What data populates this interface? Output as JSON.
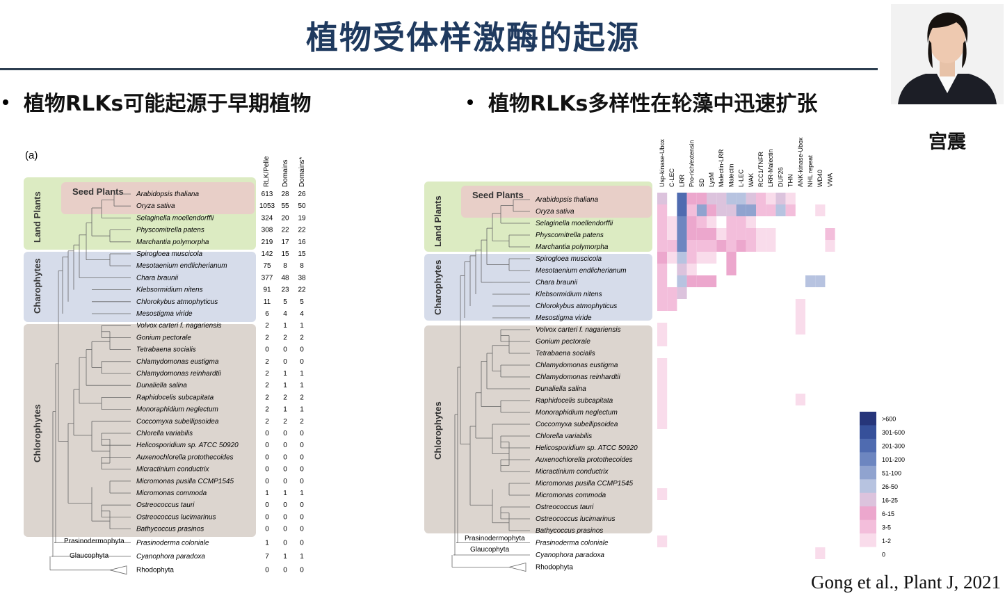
{
  "slide": {
    "title": "植物受体样激酶的起源",
    "presenter": "宫震",
    "bullet_left": "植物RLKs可能起源于早期植物",
    "bullet_right": "植物RLKs多样性在轮藻中迅速扩张",
    "citation": "Gong et al., Plant J, 2021"
  },
  "figure_left": {
    "panel_label": "(a)",
    "column_headers": [
      "RLK/Pelle",
      "Domains",
      "Domains*"
    ],
    "group_labels": [
      "Seed Plants",
      "Land Plants",
      "Charophytes",
      "Chlorophytes",
      "Prasinodermophyta",
      "Glaucophyta"
    ],
    "group_colors": {
      "seed": "#e8cfc8",
      "land": "#dcebc2",
      "charo": "#d6dcea",
      "chloro": "#dcd5cf"
    },
    "species": [
      {
        "name": "Arabidopsis thaliana",
        "rlk": "613",
        "d": "28",
        "ds": "26"
      },
      {
        "name": "Oryza sativa",
        "rlk": "1053",
        "d": "55",
        "ds": "50"
      },
      {
        "name": "Selaginella moellendorffii",
        "rlk": "324",
        "d": "20",
        "ds": "19"
      },
      {
        "name": "Physcomitrella patens",
        "rlk": "308",
        "d": "22",
        "ds": "22"
      },
      {
        "name": "Marchantia polymorpha",
        "rlk": "219",
        "d": "17",
        "ds": "16"
      },
      {
        "name": "Spirogloea muscicola",
        "rlk": "142",
        "d": "15",
        "ds": "15"
      },
      {
        "name": "Mesotaenium endlicherianum",
        "rlk": "75",
        "d": "8",
        "ds": "8"
      },
      {
        "name": "Chara braunii",
        "rlk": "377",
        "d": "48",
        "ds": "38"
      },
      {
        "name": "Klebsormidium nitens",
        "rlk": "91",
        "d": "23",
        "ds": "22"
      },
      {
        "name": "Chlorokybus atmophyticus",
        "rlk": "11",
        "d": "5",
        "ds": "5"
      },
      {
        "name": "Mesostigma viride",
        "rlk": "6",
        "d": "4",
        "ds": "4"
      },
      {
        "name": "Volvox carteri f. nagariensis",
        "rlk": "2",
        "d": "1",
        "ds": "1"
      },
      {
        "name": "Gonium pectorale",
        "rlk": "2",
        "d": "2",
        "ds": "2"
      },
      {
        "name": "Tetrabaena socialis",
        "rlk": "0",
        "d": "0",
        "ds": "0"
      },
      {
        "name": "Chlamydomonas eustigma",
        "rlk": "2",
        "d": "0",
        "ds": "0"
      },
      {
        "name": "Chlamydomonas reinhardtii",
        "rlk": "2",
        "d": "1",
        "ds": "1"
      },
      {
        "name": "Dunaliella salina",
        "rlk": "2",
        "d": "1",
        "ds": "1"
      },
      {
        "name": "Raphidocelis subcapitata",
        "rlk": "2",
        "d": "2",
        "ds": "2"
      },
      {
        "name": "Monoraphidium neglectum",
        "rlk": "2",
        "d": "1",
        "ds": "1"
      },
      {
        "name": "Coccomyxa subellipsoidea",
        "rlk": "2",
        "d": "2",
        "ds": "2"
      },
      {
        "name": "Chlorella variabilis",
        "rlk": "0",
        "d": "0",
        "ds": "0"
      },
      {
        "name": "Helicosporidium sp. ATCC 50920",
        "rlk": "0",
        "d": "0",
        "ds": "0"
      },
      {
        "name": "Auxenochlorella protothecoides",
        "rlk": "0",
        "d": "0",
        "ds": "0"
      },
      {
        "name": "Micractinium conductrix",
        "rlk": "0",
        "d": "0",
        "ds": "0"
      },
      {
        "name": "Micromonas pusilla CCMP1545",
        "rlk": "0",
        "d": "0",
        "ds": "0"
      },
      {
        "name": "Micromonas commoda",
        "rlk": "1",
        "d": "1",
        "ds": "1"
      },
      {
        "name": "Ostreococcus tauri",
        "rlk": "0",
        "d": "0",
        "ds": "0"
      },
      {
        "name": "Ostreococcus lucimarinus",
        "rlk": "0",
        "d": "0",
        "ds": "0"
      },
      {
        "name": "Bathycoccus prasinos",
        "rlk": "0",
        "d": "0",
        "ds": "0"
      },
      {
        "name": "Prasinoderma coloniale",
        "rlk": "1",
        "d": "0",
        "ds": "0"
      },
      {
        "name": "Cyanophora paradoxa",
        "rlk": "7",
        "d": "1",
        "ds": "1"
      },
      {
        "name": "Rhodophyta",
        "rlk": "0",
        "d": "0",
        "ds": "0"
      }
    ]
  },
  "chart_data": {
    "type": "heatmap",
    "columns": [
      "Usp-kinase-Ubox",
      "C-LEC",
      "LRR",
      "Pro-rich/extensin",
      "SD",
      "LysM",
      "Malectin-LRR",
      "Malectin",
      "L-LEC",
      "WAK",
      "RCC1/TNFR",
      "LRR-Malectin",
      "DUF26",
      "THN",
      "ANK-kinase-Ubox",
      "NHL repeat",
      "WD40",
      "VWA"
    ],
    "rows": [
      "Arabidopsis thaliana",
      "Oryza sativa",
      "Selaginella moellendorffii",
      "Physcomitrella patens",
      "Marchantia polymorpha",
      "Spirogloea muscicola",
      "Mesotaenium endlicherianum",
      "Chara braunii",
      "Klebsormidium nitens",
      "Chlorokybus atmophyticus",
      "Mesostigma viride",
      "Volvox carteri f. nagariensis",
      "Gonium pectorale",
      "Tetrabaena socialis",
      "Chlamydomonas eustigma",
      "Chlamydomonas reinhardtii",
      "Dunaliella salina",
      "Raphidocelis subcapitata",
      "Monoraphidium neglectum",
      "Coccomyxa subellipsoidea",
      "Chlorella variabilis",
      "Helicosporidium sp. ATCC 50920",
      "Auxenochlorella protothecoides",
      "Micractinium conductrix",
      "Micromonas pusilla CCMP1545",
      "Micromonas commoda",
      "Ostreococcus tauri",
      "Ostreococcus lucimarinus",
      "Bathycoccus prasinos",
      "Prasinoderma coloniale",
      "Cyanophora paradoxa",
      "Rhodophyta"
    ],
    "legend_bins": [
      ">600",
      "301-600",
      "201-300",
      "101-200",
      "51-100",
      "26-50",
      "16-25",
      "6-15",
      "3-5",
      "1-2",
      "0"
    ],
    "legend_colors": [
      "#26357a",
      "#36509a",
      "#4f6bb0",
      "#6d86c0",
      "#90a3cf",
      "#b7c3e0",
      "#dcc3dd",
      "#eca7cd",
      "#f3bedb",
      "#f9dceb",
      "#ffffff"
    ],
    "values": [
      [
        4,
        0,
        8,
        3,
        3,
        4,
        4,
        5,
        5,
        4,
        2,
        1,
        4,
        1,
        0,
        0,
        0,
        0
      ],
      [
        2,
        0,
        8,
        2,
        6,
        3,
        4,
        4,
        6,
        6,
        2,
        2,
        5,
        2,
        0,
        0,
        1,
        0
      ],
      [
        2,
        1,
        7,
        3,
        2,
        1,
        0,
        2,
        2,
        1,
        0,
        0,
        0,
        0,
        0,
        0,
        0,
        0
      ],
      [
        2,
        1,
        7,
        3,
        3,
        3,
        1,
        2,
        2,
        2,
        1,
        1,
        0,
        0,
        0,
        0,
        0,
        2
      ],
      [
        2,
        2,
        7,
        2,
        2,
        2,
        3,
        2,
        3,
        2,
        1,
        1,
        0,
        0,
        0,
        0,
        0,
        1
      ],
      [
        3,
        1,
        5,
        2,
        1,
        1,
        0,
        3,
        0,
        0,
        0,
        0,
        0,
        0,
        0,
        0,
        0,
        0
      ],
      [
        2,
        0,
        4,
        1,
        0,
        0,
        0,
        3,
        0,
        0,
        0,
        0,
        0,
        0,
        0,
        0,
        0,
        0
      ],
      [
        2,
        0,
        5,
        3,
        3,
        3,
        0,
        0,
        0,
        0,
        0,
        0,
        0,
        0,
        0,
        5,
        5,
        0
      ],
      [
        2,
        2,
        4,
        0,
        0,
        0,
        0,
        0,
        0,
        0,
        0,
        0,
        0,
        0,
        0,
        0,
        0,
        0
      ],
      [
        2,
        2,
        0,
        0,
        0,
        0,
        0,
        0,
        0,
        0,
        0,
        0,
        0,
        0,
        1,
        0,
        0,
        0
      ],
      [
        0,
        0,
        0,
        0,
        0,
        0,
        0,
        0,
        0,
        0,
        0,
        0,
        0,
        0,
        1,
        0,
        0,
        0
      ],
      [
        1,
        0,
        0,
        0,
        0,
        0,
        0,
        0,
        0,
        0,
        0,
        0,
        0,
        0,
        1,
        0,
        0,
        0
      ],
      [
        1,
        0,
        0,
        0,
        0,
        0,
        0,
        0,
        0,
        0,
        0,
        0,
        0,
        0,
        0,
        0,
        0,
        0
      ],
      [
        0,
        0,
        0,
        0,
        0,
        0,
        0,
        0,
        0,
        0,
        0,
        0,
        0,
        0,
        0,
        0,
        0,
        0
      ],
      [
        1,
        0,
        0,
        0,
        0,
        0,
        0,
        0,
        0,
        0,
        0,
        0,
        0,
        0,
        0,
        0,
        0,
        0
      ],
      [
        1,
        0,
        0,
        0,
        0,
        0,
        0,
        0,
        0,
        0,
        0,
        0,
        0,
        0,
        0,
        0,
        0,
        0
      ],
      [
        1,
        0,
        0,
        0,
        0,
        0,
        0,
        0,
        0,
        0,
        0,
        0,
        0,
        0,
        0,
        0,
        0,
        0
      ],
      [
        1,
        0,
        0,
        0,
        0,
        0,
        0,
        0,
        0,
        0,
        0,
        0,
        0,
        0,
        1,
        0,
        0,
        0
      ],
      [
        1,
        0,
        0,
        0,
        0,
        0,
        0,
        0,
        0,
        0,
        0,
        0,
        0,
        0,
        0,
        0,
        0,
        0
      ],
      [
        1,
        0,
        0,
        0,
        0,
        0,
        0,
        0,
        0,
        0,
        0,
        0,
        0,
        0,
        0,
        0,
        0,
        0
      ],
      [
        0,
        0,
        0,
        0,
        0,
        0,
        0,
        0,
        0,
        0,
        0,
        0,
        0,
        0,
        0,
        0,
        0,
        0
      ],
      [
        0,
        0,
        0,
        0,
        0,
        0,
        0,
        0,
        0,
        0,
        0,
        0,
        0,
        0,
        0,
        0,
        0,
        0
      ],
      [
        0,
        0,
        0,
        0,
        0,
        0,
        0,
        0,
        0,
        0,
        0,
        0,
        0,
        0,
        0,
        0,
        0,
        0
      ],
      [
        0,
        0,
        0,
        0,
        0,
        0,
        0,
        0,
        0,
        0,
        0,
        0,
        0,
        0,
        0,
        0,
        0,
        0
      ],
      [
        0,
        0,
        0,
        0,
        0,
        0,
        0,
        0,
        0,
        0,
        0,
        0,
        0,
        0,
        0,
        0,
        0,
        0
      ],
      [
        1,
        0,
        0,
        0,
        0,
        0,
        0,
        0,
        0,
        0,
        0,
        0,
        0,
        0,
        0,
        0,
        0,
        0
      ],
      [
        0,
        0,
        0,
        0,
        0,
        0,
        0,
        0,
        0,
        0,
        0,
        0,
        0,
        0,
        0,
        0,
        0,
        0
      ],
      [
        0,
        0,
        0,
        0,
        0,
        0,
        0,
        0,
        0,
        0,
        0,
        0,
        0,
        0,
        0,
        0,
        0,
        0
      ],
      [
        0,
        0,
        0,
        0,
        0,
        0,
        0,
        0,
        0,
        0,
        0,
        0,
        0,
        0,
        0,
        0,
        0,
        0
      ],
      [
        1,
        0,
        0,
        0,
        0,
        0,
        0,
        0,
        0,
        0,
        0,
        0,
        0,
        0,
        0,
        0,
        0,
        0
      ],
      [
        0,
        0,
        0,
        0,
        0,
        0,
        0,
        0,
        0,
        0,
        0,
        0,
        0,
        0,
        0,
        0,
        1,
        0
      ],
      [
        0,
        0,
        0,
        0,
        0,
        0,
        0,
        0,
        0,
        0,
        0,
        0,
        0,
        0,
        0,
        0,
        0,
        0
      ]
    ],
    "values_scale": "index into legend_colors counted from the '0' bin (0=0, 1=1-2, 2=3-5, 3=6-15, 4=16-25, 5=26-50, 6=51-100, 7=101-200, 8=201-300)"
  }
}
